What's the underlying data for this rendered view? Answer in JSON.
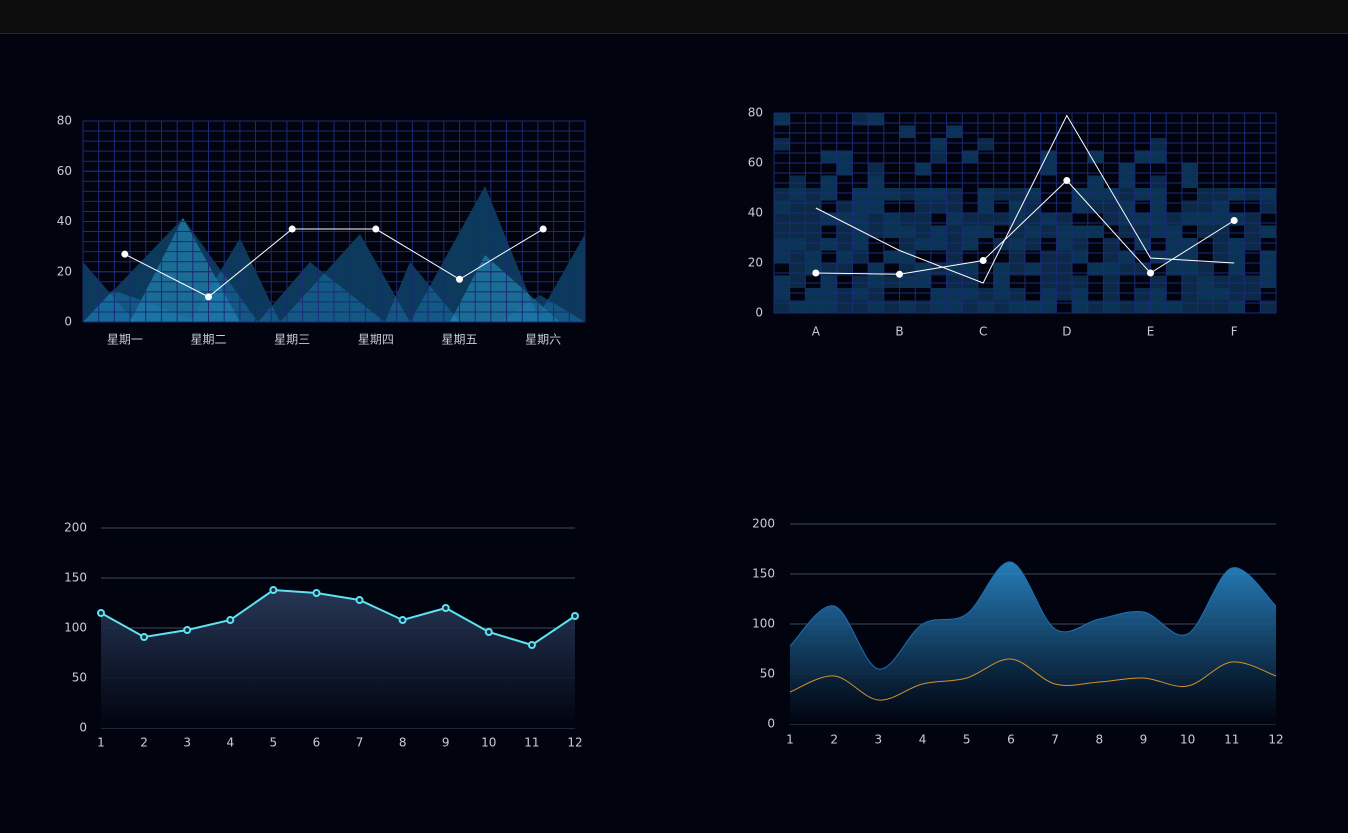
{
  "chart_data": [
    {
      "type": "line",
      "categories": [
        "星期一",
        "星期二",
        "星期三",
        "星期四",
        "星期五",
        "星期六"
      ],
      "values": [
        27,
        10,
        37,
        37,
        17,
        37
      ],
      "color": "#ffffff",
      "markers": true,
      "ylim": [
        0,
        80
      ],
      "yticks": [
        0,
        20,
        40,
        60,
        80
      ],
      "grid": true
    },
    {
      "type": "line",
      "categories": [
        "A",
        "B",
        "C",
        "D",
        "E",
        "F"
      ],
      "series": [
        {
          "color": "#ffffff",
          "markers": true,
          "values": [
            16,
            15.5,
            21,
            53,
            16,
            37
          ]
        },
        {
          "color": "#ffffff",
          "markers": false,
          "values": [
            42,
            25,
            12,
            79,
            22,
            20
          ]
        }
      ],
      "ylim": [
        0,
        80
      ],
      "yticks": [
        0,
        20,
        40,
        60,
        80
      ],
      "grid": true
    },
    {
      "type": "area",
      "categories": [
        "1",
        "2",
        "3",
        "4",
        "5",
        "6",
        "7",
        "8",
        "9",
        "10",
        "11",
        "12"
      ],
      "values": [
        115,
        91,
        98,
        108,
        138,
        135,
        128,
        108,
        120,
        96,
        83,
        112
      ],
      "color": "#5ee3f0",
      "markers": true,
      "ylim": [
        0,
        200
      ],
      "yticks": [
        0,
        50,
        100,
        150,
        200
      ],
      "grid": true
    },
    {
      "type": "area",
      "smooth": true,
      "categories": [
        "1",
        "2",
        "3",
        "4",
        "5",
        "6",
        "7",
        "8",
        "9",
        "10",
        "11",
        "12"
      ],
      "series": [
        {
          "color": "#1f6fb5",
          "markers": false,
          "values": [
            78,
            118,
            55,
            100,
            110,
            162,
            95,
            105,
            112,
            90,
            156,
            118
          ]
        },
        {
          "color": "#d4922a",
          "markers": false,
          "values": [
            32,
            48,
            24,
            40,
            46,
            65,
            40,
            42,
            46,
            38,
            62,
            48
          ]
        }
      ],
      "ylim": [
        0,
        200
      ],
      "yticks": [
        0,
        50,
        100,
        150,
        200
      ],
      "grid": true
    }
  ]
}
